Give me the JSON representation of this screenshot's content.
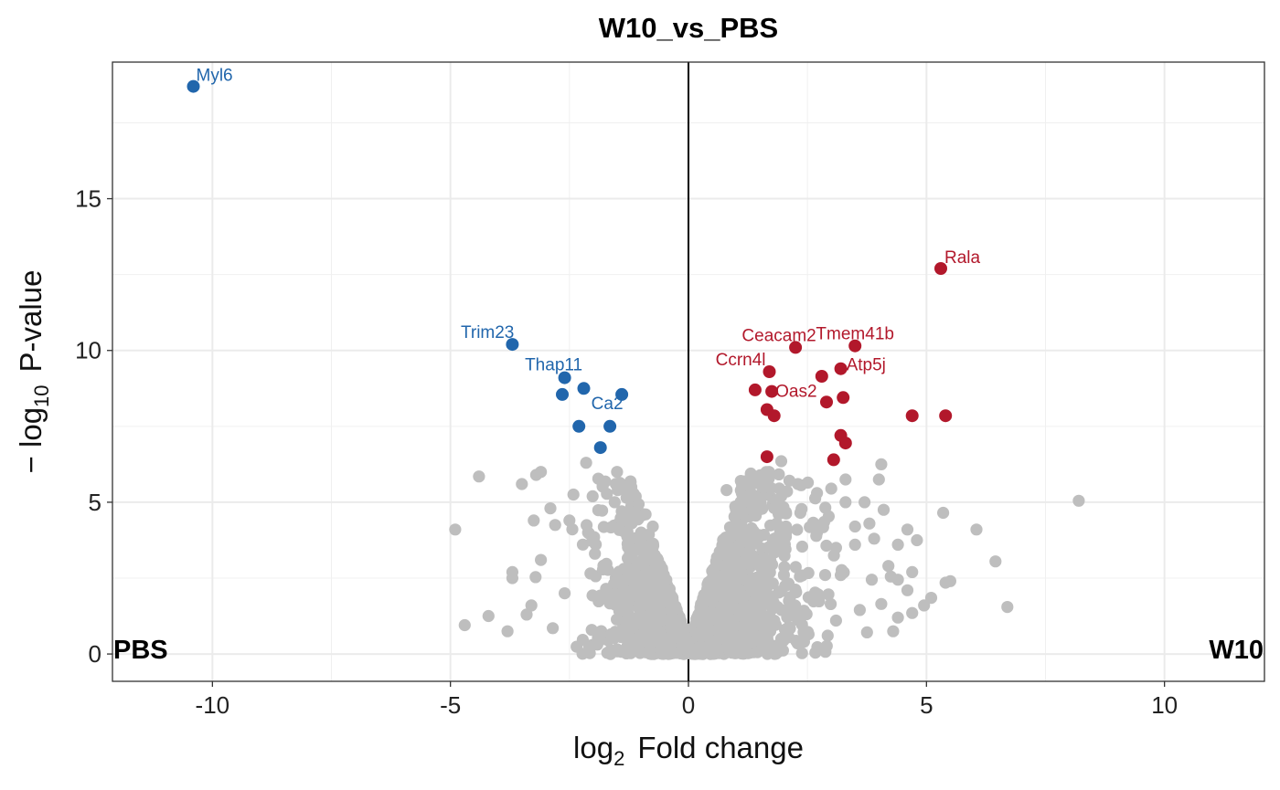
{
  "chart_data": {
    "type": "scatter",
    "title": "W10_vs_PBS",
    "xlabel_base": "log",
    "xlabel_sub": "2",
    "xlabel_rest": "Fold change",
    "ylabel_prefix": "− log",
    "ylabel_sub": "10",
    "ylabel_rest": "P-value",
    "xlim": [
      -12.1,
      12.1
    ],
    "ylim": [
      -0.9,
      19.5
    ],
    "x_ticks": [
      -10,
      -5,
      0,
      5,
      10
    ],
    "x_tick_labels": [
      "-10",
      "-5",
      "0",
      "5",
      "10"
    ],
    "y_ticks": [
      0,
      5,
      10,
      15
    ],
    "y_tick_labels": [
      "0",
      "5",
      "10",
      "15"
    ],
    "corner_labels": {
      "left": "PBS",
      "right": "W10"
    },
    "grid": true,
    "colors": {
      "down": "#2166ac",
      "up": "#b2182b",
      "ns": "#bebebe",
      "zero_line": "#000000"
    },
    "down_regulated": [
      {
        "x": -10.4,
        "y": 18.7,
        "label": "Myl6"
      },
      {
        "x": -3.7,
        "y": 10.2,
        "label": "Trim23"
      },
      {
        "x": -2.6,
        "y": 9.1,
        "label": "Thap11"
      },
      {
        "x": -1.4,
        "y": 8.55,
        "label": "Ca2"
      },
      {
        "x": -2.65,
        "y": 8.55
      },
      {
        "x": -2.2,
        "y": 8.75
      },
      {
        "x": -2.3,
        "y": 7.5
      },
      {
        "x": -1.65,
        "y": 7.5
      },
      {
        "x": -1.85,
        "y": 6.8
      }
    ],
    "up_regulated": [
      {
        "x": 5.3,
        "y": 12.7,
        "label": "Rala"
      },
      {
        "x": 2.25,
        "y": 10.1,
        "label": "Ceacam2"
      },
      {
        "x": 3.5,
        "y": 10.15,
        "label": "Tmem41b"
      },
      {
        "x": 1.7,
        "y": 9.3,
        "label": "Ccrn4l"
      },
      {
        "x": 3.2,
        "y": 9.4,
        "label": "Atp5j"
      },
      {
        "x": 1.75,
        "y": 8.65,
        "label": "Oas2"
      },
      {
        "x": 2.8,
        "y": 9.15
      },
      {
        "x": 1.4,
        "y": 8.7
      },
      {
        "x": 2.9,
        "y": 8.3
      },
      {
        "x": 3.25,
        "y": 8.45
      },
      {
        "x": 1.65,
        "y": 8.05
      },
      {
        "x": 1.8,
        "y": 7.85
      },
      {
        "x": 4.7,
        "y": 7.85
      },
      {
        "x": 5.4,
        "y": 7.85
      },
      {
        "x": 3.2,
        "y": 7.2
      },
      {
        "x": 3.3,
        "y": 6.95
      },
      {
        "x": 3.05,
        "y": 6.4
      },
      {
        "x": 1.65,
        "y": 6.5
      }
    ],
    "not_significant_outliers": [
      {
        "x": -4.9,
        "y": 4.1
      },
      {
        "x": -4.4,
        "y": 5.85
      },
      {
        "x": -4.7,
        "y": 0.95
      },
      {
        "x": -4.2,
        "y": 1.25
      },
      {
        "x": -3.8,
        "y": 0.75
      },
      {
        "x": -3.7,
        "y": 2.7
      },
      {
        "x": -3.7,
        "y": 2.5
      },
      {
        "x": -3.5,
        "y": 5.6
      },
      {
        "x": -3.2,
        "y": 5.9
      },
      {
        "x": -3.1,
        "y": 6.0
      },
      {
        "x": -3.25,
        "y": 4.4
      },
      {
        "x": -3.3,
        "y": 1.6
      },
      {
        "x": -3.1,
        "y": 3.1
      },
      {
        "x": -2.9,
        "y": 4.8
      },
      {
        "x": -2.8,
        "y": 4.25
      },
      {
        "x": -2.5,
        "y": 4.4
      },
      {
        "x": -2.15,
        "y": 6.3
      },
      {
        "x": -2.85,
        "y": 0.85
      },
      {
        "x": -3.4,
        "y": 1.3
      },
      {
        "x": -2.6,
        "y": 2.0
      },
      {
        "x": -1.8,
        "y": 5.6
      },
      {
        "x": -1.55,
        "y": 5.0
      },
      {
        "x": -1.5,
        "y": 6.0
      },
      {
        "x": -0.75,
        "y": 4.2
      },
      {
        "x": -1.2,
        "y": 5.5
      },
      {
        "x": -0.9,
        "y": 4.6
      },
      {
        "x": 0.8,
        "y": 5.4
      },
      {
        "x": 1.1,
        "y": 5.7
      },
      {
        "x": 1.55,
        "y": 5.5
      },
      {
        "x": 1.95,
        "y": 5.2
      },
      {
        "x": 1.95,
        "y": 6.35
      },
      {
        "x": 2.3,
        "y": 5.6
      },
      {
        "x": 2.7,
        "y": 5.3
      },
      {
        "x": 3.0,
        "y": 5.45
      },
      {
        "x": 3.3,
        "y": 5.75
      },
      {
        "x": 3.3,
        "y": 5.0
      },
      {
        "x": 3.7,
        "y": 5.0
      },
      {
        "x": 4.05,
        "y": 6.25
      },
      {
        "x": 4.0,
        "y": 5.75
      },
      {
        "x": 4.1,
        "y": 4.75
      },
      {
        "x": 3.5,
        "y": 4.2
      },
      {
        "x": 3.8,
        "y": 4.3
      },
      {
        "x": 3.5,
        "y": 3.6
      },
      {
        "x": 3.9,
        "y": 3.8
      },
      {
        "x": 4.4,
        "y": 3.6
      },
      {
        "x": 4.6,
        "y": 4.1
      },
      {
        "x": 4.8,
        "y": 3.75
      },
      {
        "x": 5.35,
        "y": 4.65
      },
      {
        "x": 6.05,
        "y": 4.1
      },
      {
        "x": 6.45,
        "y": 3.05
      },
      {
        "x": 8.2,
        "y": 5.05
      },
      {
        "x": 6.7,
        "y": 1.55
      },
      {
        "x": 5.4,
        "y": 2.35
      },
      {
        "x": 5.5,
        "y": 2.4
      },
      {
        "x": 5.1,
        "y": 1.85
      },
      {
        "x": 4.95,
        "y": 1.6
      },
      {
        "x": 4.7,
        "y": 1.35
      },
      {
        "x": 4.7,
        "y": 2.7
      },
      {
        "x": 4.4,
        "y": 2.45
      },
      {
        "x": 4.6,
        "y": 2.1
      },
      {
        "x": 4.2,
        "y": 2.9
      },
      {
        "x": 4.25,
        "y": 2.55
      },
      {
        "x": 3.85,
        "y": 2.45
      },
      {
        "x": 4.05,
        "y": 1.65
      },
      {
        "x": 4.4,
        "y": 1.2
      },
      {
        "x": 4.3,
        "y": 0.75
      },
      {
        "x": 3.6,
        "y": 1.45
      },
      {
        "x": 3.1,
        "y": 1.1
      },
      {
        "x": 3.2,
        "y": 2.6
      },
      {
        "x": 3.1,
        "y": 3.5
      },
      {
        "x": 2.7,
        "y": 4.0
      },
      {
        "x": 2.85,
        "y": 4.35
      },
      {
        "x": 2.35,
        "y": 4.65
      },
      {
        "x": 2.05,
        "y": 4.2
      }
    ],
    "bulk_ns_count": 1800,
    "bulk_ns_seed": 7
  }
}
